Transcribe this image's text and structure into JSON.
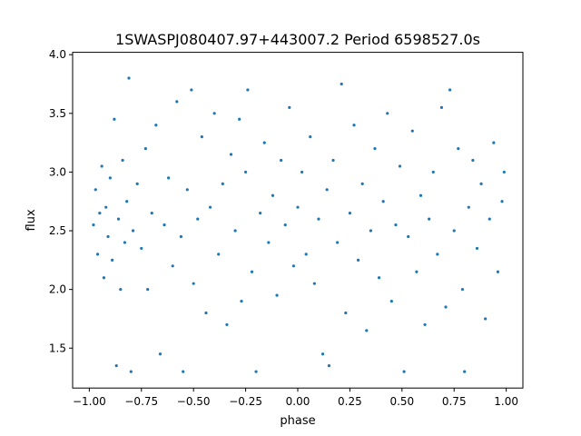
{
  "chart_data": {
    "type": "scatter",
    "title": "1SWASPJ080407.97+443007.2 Period 6598527.0s",
    "xlabel": "phase",
    "ylabel": "flux",
    "xlim": [
      -1.08,
      1.08
    ],
    "ylim": [
      1.16,
      4.02
    ],
    "xticks": [
      -1.0,
      -0.75,
      -0.5,
      -0.25,
      0.0,
      0.25,
      0.5,
      0.75,
      1.0
    ],
    "xtick_labels": [
      "−1.00",
      "−0.75",
      "−0.50",
      "−0.25",
      "0.00",
      "0.25",
      "0.50",
      "0.75",
      "1.00"
    ],
    "yticks": [
      1.5,
      2.0,
      2.5,
      3.0,
      3.5,
      4.0
    ],
    "ytick_labels": [
      "1.5",
      "2.0",
      "2.5",
      "3.0",
      "3.5",
      "4.0"
    ],
    "grid": false,
    "legend": "none",
    "marker_color": "#1f77b4",
    "series": [
      {
        "points": [
          [
            -0.98,
            2.55
          ],
          [
            -0.97,
            2.85
          ],
          [
            -0.96,
            2.3
          ],
          [
            -0.95,
            2.65
          ],
          [
            -0.94,
            3.05
          ],
          [
            -0.93,
            2.1
          ],
          [
            -0.92,
            2.7
          ],
          [
            -0.91,
            2.45
          ],
          [
            -0.9,
            2.95
          ],
          [
            -0.89,
            2.25
          ],
          [
            -0.88,
            3.45
          ],
          [
            -0.87,
            1.35
          ],
          [
            -0.86,
            2.6
          ],
          [
            -0.85,
            2.0
          ],
          [
            -0.84,
            3.1
          ],
          [
            -0.83,
            2.4
          ],
          [
            -0.82,
            2.75
          ],
          [
            -0.81,
            3.8
          ],
          [
            -0.8,
            1.3
          ],
          [
            -0.79,
            2.5
          ],
          [
            -0.77,
            2.9
          ],
          [
            -0.75,
            2.35
          ],
          [
            -0.73,
            3.2
          ],
          [
            -0.72,
            2.0
          ],
          [
            -0.7,
            2.65
          ],
          [
            -0.68,
            3.4
          ],
          [
            -0.66,
            1.45
          ],
          [
            -0.64,
            2.55
          ],
          [
            -0.62,
            2.95
          ],
          [
            -0.6,
            2.2
          ],
          [
            -0.58,
            3.6
          ],
          [
            -0.56,
            2.45
          ],
          [
            -0.55,
            1.3
          ],
          [
            -0.53,
            2.85
          ],
          [
            -0.51,
            3.7
          ],
          [
            -0.5,
            2.05
          ],
          [
            -0.48,
            2.6
          ],
          [
            -0.46,
            3.3
          ],
          [
            -0.44,
            1.8
          ],
          [
            -0.42,
            2.7
          ],
          [
            -0.4,
            3.5
          ],
          [
            -0.38,
            2.3
          ],
          [
            -0.36,
            2.9
          ],
          [
            -0.34,
            1.7
          ],
          [
            -0.32,
            3.15
          ],
          [
            -0.3,
            2.5
          ],
          [
            -0.28,
            3.45
          ],
          [
            -0.27,
            1.9
          ],
          [
            -0.25,
            3.0
          ],
          [
            -0.24,
            3.7
          ],
          [
            -0.22,
            2.15
          ],
          [
            -0.2,
            1.3
          ],
          [
            -0.18,
            2.65
          ],
          [
            -0.16,
            3.25
          ],
          [
            -0.14,
            2.4
          ],
          [
            -0.12,
            2.8
          ],
          [
            -0.1,
            1.95
          ],
          [
            -0.08,
            3.1
          ],
          [
            -0.06,
            2.55
          ],
          [
            -0.04,
            3.55
          ],
          [
            -0.02,
            2.2
          ],
          [
            0.0,
            2.7
          ],
          [
            0.02,
            3.0
          ],
          [
            0.04,
            2.3
          ],
          [
            0.06,
            3.3
          ],
          [
            0.08,
            2.05
          ],
          [
            0.1,
            2.6
          ],
          [
            0.12,
            1.45
          ],
          [
            0.14,
            2.85
          ],
          [
            0.15,
            1.35
          ],
          [
            0.17,
            3.1
          ],
          [
            0.19,
            2.4
          ],
          [
            0.21,
            3.75
          ],
          [
            0.23,
            1.8
          ],
          [
            0.25,
            2.65
          ],
          [
            0.27,
            3.4
          ],
          [
            0.29,
            2.25
          ],
          [
            0.31,
            2.9
          ],
          [
            0.33,
            1.65
          ],
          [
            0.35,
            2.5
          ],
          [
            0.37,
            3.2
          ],
          [
            0.39,
            2.1
          ],
          [
            0.41,
            2.75
          ],
          [
            0.43,
            3.5
          ],
          [
            0.45,
            1.9
          ],
          [
            0.47,
            2.55
          ],
          [
            0.49,
            3.05
          ],
          [
            0.51,
            1.3
          ],
          [
            0.53,
            2.45
          ],
          [
            0.55,
            3.35
          ],
          [
            0.57,
            2.15
          ],
          [
            0.59,
            2.8
          ],
          [
            0.61,
            1.7
          ],
          [
            0.63,
            2.6
          ],
          [
            0.65,
            3.0
          ],
          [
            0.67,
            2.3
          ],
          [
            0.69,
            3.55
          ],
          [
            0.71,
            1.85
          ],
          [
            0.73,
            3.7
          ],
          [
            0.75,
            2.5
          ],
          [
            0.77,
            3.2
          ],
          [
            0.79,
            2.0
          ],
          [
            0.8,
            1.3
          ],
          [
            0.82,
            2.7
          ],
          [
            0.84,
            3.1
          ],
          [
            0.86,
            2.35
          ],
          [
            0.88,
            2.9
          ],
          [
            0.9,
            1.75
          ],
          [
            0.92,
            2.6
          ],
          [
            0.94,
            3.25
          ],
          [
            0.96,
            2.15
          ],
          [
            0.98,
            2.75
          ],
          [
            0.99,
            3.0
          ]
        ]
      }
    ]
  }
}
